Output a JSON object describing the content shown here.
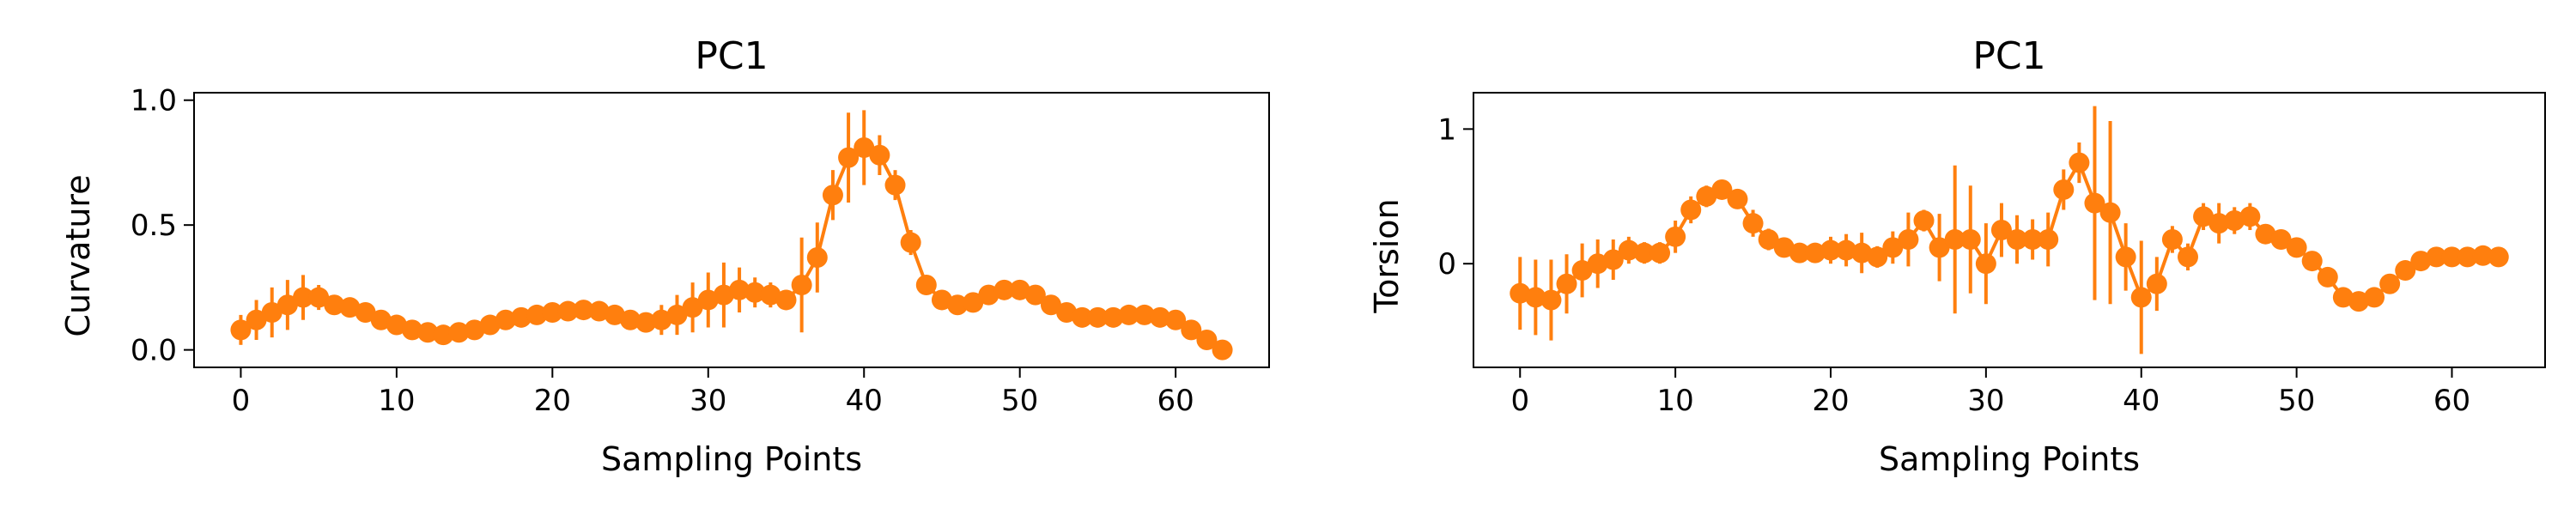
{
  "colors": {
    "series": "#ff7f0e",
    "axis": "#000000"
  },
  "chart_data": [
    {
      "type": "line",
      "title": "PC1",
      "xlabel": "Sampling Points",
      "ylabel": "Curvature",
      "xlim": [
        -3,
        66
      ],
      "ylim": [
        -0.07,
        1.03
      ],
      "xticks": [
        0,
        10,
        20,
        30,
        40,
        50,
        60
      ],
      "yticks": [
        0.0,
        0.5,
        1.0
      ],
      "ytick_labels": [
        "0.0",
        "0.5",
        "1.0"
      ],
      "grid": false,
      "x": [
        0,
        1,
        2,
        3,
        4,
        5,
        6,
        7,
        8,
        9,
        10,
        11,
        12,
        13,
        14,
        15,
        16,
        17,
        18,
        19,
        20,
        21,
        22,
        23,
        24,
        25,
        26,
        27,
        28,
        29,
        30,
        31,
        32,
        33,
        34,
        35,
        36,
        37,
        38,
        39,
        40,
        41,
        42,
        43,
        44,
        45,
        46,
        47,
        48,
        49,
        50,
        51,
        52,
        53,
        54,
        55,
        56,
        57,
        58,
        59,
        60,
        61,
        62,
        63
      ],
      "series": [
        {
          "values": [
            0.08,
            0.12,
            0.15,
            0.18,
            0.21,
            0.21,
            0.18,
            0.17,
            0.15,
            0.12,
            0.1,
            0.08,
            0.07,
            0.06,
            0.07,
            0.08,
            0.1,
            0.12,
            0.13,
            0.14,
            0.15,
            0.155,
            0.16,
            0.155,
            0.14,
            0.12,
            0.11,
            0.12,
            0.14,
            0.17,
            0.2,
            0.22,
            0.24,
            0.23,
            0.22,
            0.2,
            0.26,
            0.37,
            0.62,
            0.77,
            0.81,
            0.78,
            0.66,
            0.43,
            0.26,
            0.2,
            0.18,
            0.19,
            0.22,
            0.24,
            0.24,
            0.22,
            0.18,
            0.15,
            0.13,
            0.13,
            0.13,
            0.14,
            0.14,
            0.13,
            0.12,
            0.08,
            0.04,
            0.0
          ],
          "errors": [
            0.06,
            0.08,
            0.1,
            0.1,
            0.09,
            0.05,
            0.03,
            0.03,
            0.04,
            0.03,
            0.03,
            0.03,
            0.02,
            0.02,
            0.02,
            0.02,
            0.02,
            0.02,
            0.02,
            0.02,
            0.02,
            0.02,
            0.02,
            0.02,
            0.02,
            0.03,
            0.04,
            0.06,
            0.08,
            0.1,
            0.11,
            0.13,
            0.09,
            0.06,
            0.05,
            0.04,
            0.19,
            0.14,
            0.1,
            0.18,
            0.15,
            0.08,
            0.06,
            0.05,
            0.03,
            0.02,
            0.02,
            0.02,
            0.02,
            0.02,
            0.02,
            0.02,
            0.02,
            0.02,
            0.02,
            0.02,
            0.02,
            0.02,
            0.02,
            0.02,
            0.02,
            0.02,
            0.02,
            0.02
          ]
        }
      ]
    },
    {
      "type": "line",
      "title": "PC1",
      "xlabel": "Sampling Points",
      "ylabel": "Torsion",
      "xlim": [
        -3,
        66
      ],
      "ylim": [
        -0.77,
        1.27
      ],
      "xticks": [
        0,
        10,
        20,
        30,
        40,
        50,
        60
      ],
      "yticks": [
        0,
        1
      ],
      "ytick_labels": [
        "0",
        "1"
      ],
      "grid": false,
      "x": [
        0,
        1,
        2,
        3,
        4,
        5,
        6,
        7,
        8,
        9,
        10,
        11,
        12,
        13,
        14,
        15,
        16,
        17,
        18,
        19,
        20,
        21,
        22,
        23,
        24,
        25,
        26,
        27,
        28,
        29,
        30,
        31,
        32,
        33,
        34,
        35,
        36,
        37,
        38,
        39,
        40,
        41,
        42,
        43,
        44,
        45,
        46,
        47,
        48,
        49,
        50,
        51,
        52,
        53,
        54,
        55,
        56,
        57,
        58,
        59,
        60,
        61,
        62,
        63
      ],
      "series": [
        {
          "values": [
            -0.22,
            -0.25,
            -0.27,
            -0.15,
            -0.05,
            0.0,
            0.03,
            0.1,
            0.08,
            0.08,
            0.2,
            0.4,
            0.5,
            0.55,
            0.48,
            0.3,
            0.18,
            0.12,
            0.08,
            0.08,
            0.1,
            0.1,
            0.08,
            0.05,
            0.12,
            0.18,
            0.32,
            0.12,
            0.18,
            0.18,
            0.0,
            0.25,
            0.18,
            0.18,
            0.18,
            0.55,
            0.75,
            0.45,
            0.38,
            0.05,
            -0.25,
            -0.15,
            0.18,
            0.05,
            0.35,
            0.3,
            0.32,
            0.35,
            0.22,
            0.18,
            0.12,
            0.02,
            -0.1,
            -0.25,
            -0.28,
            -0.25,
            -0.15,
            -0.05,
            0.02,
            0.05,
            0.05,
            0.05,
            0.06,
            0.05
          ],
          "errors": [
            0.27,
            0.28,
            0.3,
            0.22,
            0.2,
            0.18,
            0.15,
            0.1,
            0.08,
            0.08,
            0.12,
            0.1,
            0.08,
            0.05,
            0.05,
            0.1,
            0.08,
            0.05,
            0.05,
            0.05,
            0.1,
            0.12,
            0.15,
            0.08,
            0.12,
            0.2,
            0.08,
            0.25,
            0.55,
            0.4,
            0.3,
            0.2,
            0.18,
            0.15,
            0.2,
            0.15,
            0.15,
            0.72,
            0.68,
            0.25,
            0.42,
            0.2,
            0.1,
            0.1,
            0.1,
            0.15,
            0.1,
            0.1,
            0.05,
            0.05,
            0.05,
            0.05,
            0.05,
            0.05,
            0.05,
            0.05,
            0.05,
            0.05,
            0.05,
            0.05,
            0.05,
            0.05,
            0.05,
            0.05
          ]
        }
      ]
    }
  ]
}
